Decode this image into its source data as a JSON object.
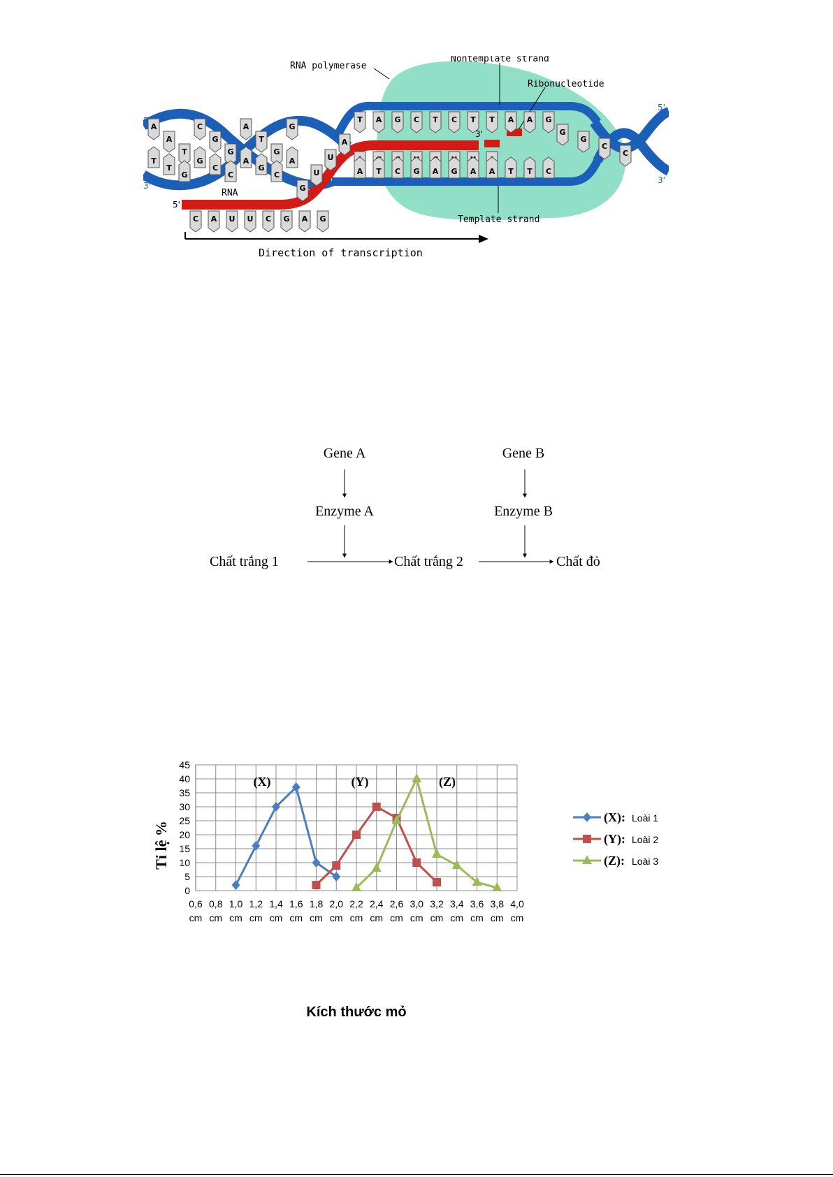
{
  "transcription": {
    "labels": {
      "rna_polymerase": "RNA polymerase",
      "nontemplate_strand": "Nontemplate strand",
      "ribonucleotide": "Ribonucleotide",
      "template_strand": "Template strand",
      "rna": "RNA",
      "direction": "Direction of transcription",
      "five_prime": "5'",
      "three_prime": "3'"
    },
    "rna_bases": [
      "C",
      "A",
      "U",
      "U",
      "C",
      "G",
      "A",
      "G"
    ],
    "transition_bases": [
      "G",
      "U",
      "U",
      "A"
    ],
    "nontemplate_bases": [
      "T",
      "A",
      "G",
      "C",
      "T",
      "C",
      "T",
      "T",
      "A",
      "A",
      "G"
    ],
    "rna_inside_bases": [
      "A",
      "G",
      "C",
      "U",
      "C",
      "U",
      "U",
      "A"
    ],
    "template_bases": [
      "A",
      "T",
      "C",
      "G",
      "A",
      "G",
      "A",
      "A",
      "T",
      "T",
      "C"
    ],
    "left_top_bases": [
      "A",
      "A",
      "T",
      "C",
      "G",
      "G",
      "A",
      "T",
      "G",
      "G"
    ],
    "left_bottom_bases": [
      "T",
      "T",
      "G",
      "G",
      "C",
      "C",
      "A",
      "G",
      "C",
      "A"
    ],
    "right_bases": [
      "G",
      "G",
      "C",
      "C"
    ],
    "colors": {
      "dna": "#1b5fb8",
      "rna": "#d41a14",
      "polymerase": "#7fd9bd"
    }
  },
  "pathway": {
    "gene_a": "Gene A",
    "gene_b": "Gene B",
    "enzyme_a": "Enzyme A",
    "enzyme_b": "Enzyme B",
    "substance_1": "Chất trắng 1",
    "substance_2": "Chất trắng 2",
    "product": "Chất đỏ"
  },
  "chart_data": {
    "type": "line",
    "ylabel": "Tỉ lệ %",
    "xlabel": "Kích thước mỏ",
    "categories": [
      "0,6 cm",
      "0,8 cm",
      "1,0 cm",
      "1,2 cm",
      "1,4 cm",
      "1,6 cm",
      "1,8 cm",
      "2,0 cm",
      "2,2 cm",
      "2,4 cm",
      "2,6 cm",
      "3,0 cm",
      "3,2 cm",
      "3,4 cm",
      "3,6 cm",
      "3,8 cm",
      "4,0 cm"
    ],
    "yticks": [
      "0",
      "5",
      "10",
      "15",
      "20",
      "25",
      "30",
      "35",
      "40",
      "45"
    ],
    "ylim": [
      0,
      45
    ],
    "grid": true,
    "legend_position": "right",
    "series": [
      {
        "name": "(X):",
        "legend_text": "Loài 1",
        "annotation": "(X)",
        "color": "#4a7ebf",
        "marker": "diamond",
        "points": [
          [
            1.0,
            2
          ],
          [
            1.2,
            16
          ],
          [
            1.4,
            30
          ],
          [
            1.6,
            37
          ],
          [
            1.8,
            10
          ],
          [
            2.0,
            5
          ]
        ]
      },
      {
        "name": "(Y):",
        "legend_text": "Loài 2",
        "annotation": "(Y)",
        "color": "#c0504d",
        "marker": "square",
        "points": [
          [
            1.8,
            2
          ],
          [
            2.0,
            9
          ],
          [
            2.2,
            20
          ],
          [
            2.4,
            30
          ],
          [
            2.6,
            26
          ],
          [
            3.0,
            10
          ],
          [
            3.2,
            3
          ]
        ]
      },
      {
        "name": "(Z):",
        "legend_text": "Loài 3",
        "annotation": "(Z)",
        "color": "#9bbb59",
        "marker": "triangle",
        "points": [
          [
            2.2,
            1
          ],
          [
            2.4,
            8
          ],
          [
            2.6,
            25
          ],
          [
            3.0,
            40
          ],
          [
            3.2,
            13
          ],
          [
            3.4,
            9
          ],
          [
            3.6,
            3
          ],
          [
            3.8,
            1
          ]
        ]
      }
    ]
  }
}
